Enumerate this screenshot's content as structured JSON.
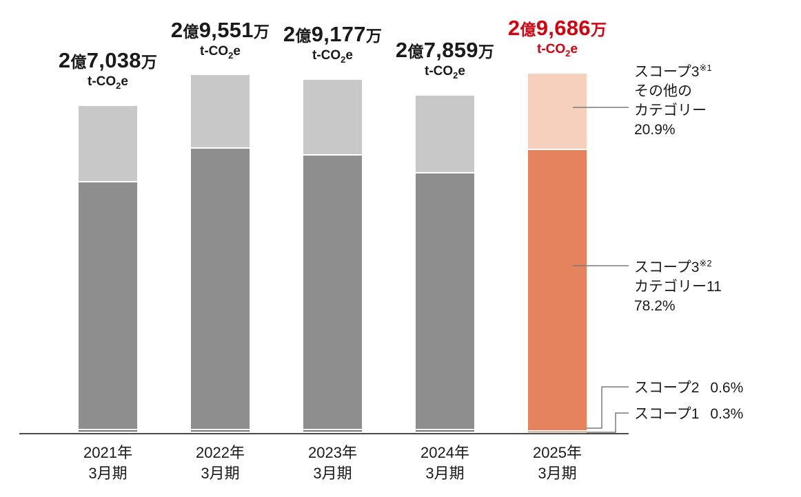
{
  "chart_data": {
    "type": "bar",
    "stacked": true,
    "title": "",
    "value_unit": "万 t-CO2e",
    "unit": {
      "pre": "t-CO",
      "sub": "2",
      "post": "e"
    },
    "max_value": 29686,
    "grid": false,
    "legend_position": "right",
    "axis_color": "#4a4a4a",
    "highlight_color": "#d7000f",
    "categories": [
      {
        "line1": "2021年",
        "line2": "3月期"
      },
      {
        "line1": "2022年",
        "line2": "3月期"
      },
      {
        "line1": "2023年",
        "line2": "3月期"
      },
      {
        "line1": "2024年",
        "line2": "3月期"
      },
      {
        "line1": "2025年",
        "line2": "3月期"
      }
    ],
    "bars": [
      {
        "total": 27038,
        "label": {
          "num1": "2",
          "kanji1": "億",
          "num2": "7,038",
          "kanji2": "万"
        },
        "label_color": "#1a1a1a",
        "segments": {
          "scope1": 0.6,
          "scope2": 0.8,
          "scope3_cat11": 75.6,
          "scope3_other": 23.0
        },
        "colors": {
          "scope1": "#616161",
          "scope2": "#747474",
          "scope3_cat11": "#8e8e8e",
          "scope3_other": "#c8c8c8"
        }
      },
      {
        "total": 29551,
        "label": {
          "num1": "2",
          "kanji1": "億",
          "num2": "9,551",
          "kanji2": "万"
        },
        "label_color": "#1a1a1a",
        "segments": {
          "scope1": 0.6,
          "scope2": 0.8,
          "scope3_cat11": 78.6,
          "scope3_other": 20.0
        },
        "colors": {
          "scope1": "#616161",
          "scope2": "#747474",
          "scope3_cat11": "#8e8e8e",
          "scope3_other": "#c8c8c8"
        }
      },
      {
        "total": 29177,
        "label": {
          "num1": "2",
          "kanji1": "億",
          "num2": "9,177",
          "kanji2": "万"
        },
        "label_color": "#1a1a1a",
        "segments": {
          "scope1": 0.6,
          "scope2": 0.8,
          "scope3_cat11": 77.6,
          "scope3_other": 21.0
        },
        "colors": {
          "scope1": "#616161",
          "scope2": "#747474",
          "scope3_cat11": "#8e8e8e",
          "scope3_other": "#c8c8c8"
        }
      },
      {
        "total": 27859,
        "label": {
          "num1": "2",
          "kanji1": "億",
          "num2": "7,859",
          "kanji2": "万"
        },
        "label_color": "#1a1a1a",
        "segments": {
          "scope1": 0.6,
          "scope2": 0.8,
          "scope3_cat11": 76.1,
          "scope3_other": 22.5
        },
        "colors": {
          "scope1": "#616161",
          "scope2": "#747474",
          "scope3_cat11": "#8e8e8e",
          "scope3_other": "#c8c8c8"
        }
      },
      {
        "total": 29686,
        "label": {
          "num1": "2",
          "kanji1": "億",
          "num2": "9,686",
          "kanji2": "万"
        },
        "label_color": "#d7000f",
        "segments": {
          "scope1": 0.3,
          "scope2": 0.6,
          "scope3_cat11": 78.2,
          "scope3_other": 20.9
        },
        "colors": {
          "scope1": "#b5573b",
          "scope2": "#c9694a",
          "scope3_cat11": "#e5835f",
          "scope3_other": "#f7cfbd"
        }
      }
    ],
    "annotations": {
      "scope3_other": {
        "name": "スコープ3",
        "sup": "※1",
        "line2": "その他の",
        "line3": "カテゴリー",
        "value": "20.9%"
      },
      "scope3_cat11": {
        "name": "スコープ3",
        "sup": "※2",
        "line2": "カテゴリー11",
        "value": "78.2%"
      },
      "scope2": {
        "name": "スコープ2",
        "value": "0.6%"
      },
      "scope1": {
        "name": "スコープ1",
        "value": "0.3%"
      }
    }
  }
}
